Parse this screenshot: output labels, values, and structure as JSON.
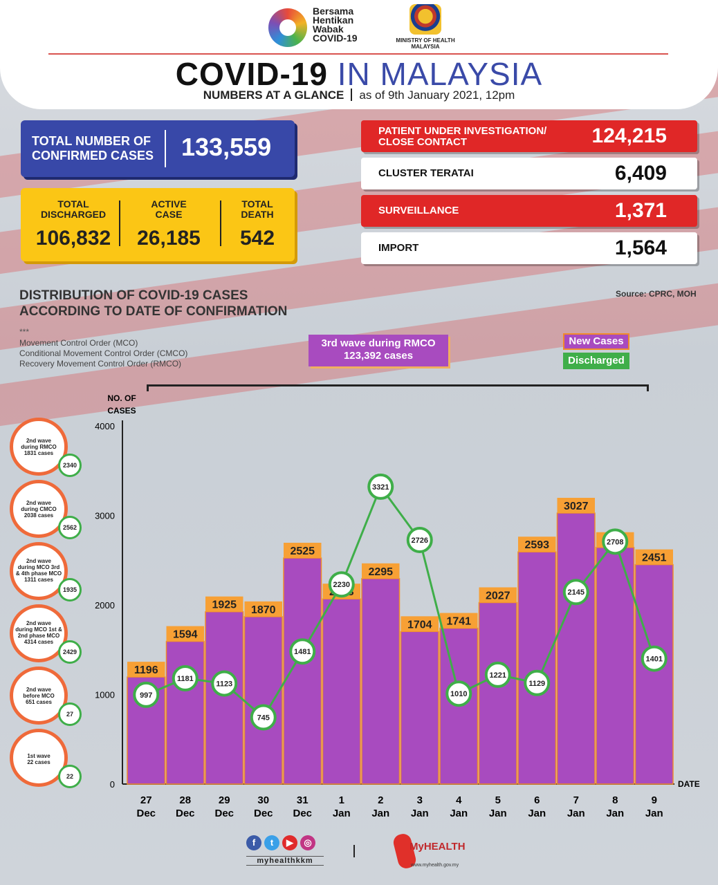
{
  "header": {
    "logo1_text": [
      "Bersama",
      "Hentikan",
      "Wabak",
      "COVID-19"
    ],
    "ministry": [
      "MINISTRY OF HEALTH",
      "MALAYSIA"
    ],
    "title_a": "COVID-19",
    "title_b": "IN MALAYSIA",
    "subtitle_a": "NUMBERS AT A GLANCE",
    "subtitle_b": "as of 9th January 2021, 12pm"
  },
  "summary": {
    "total_label_1": "TOTAL NUMBER OF",
    "total_label_2": "CONFIRMED CASES",
    "total_value": "133,559",
    "discharged_label_1": "TOTAL",
    "discharged_label_2": "DISCHARGED",
    "discharged_value": "106,832",
    "active_label_1": "ACTIVE",
    "active_label_2": "CASE",
    "active_value": "26,185",
    "death_label_1": "TOTAL",
    "death_label_2": "DEATH",
    "death_value": "542"
  },
  "categories": [
    {
      "label_1": "PATIENT UNDER INVESTIGATION/",
      "label_2": "CLOSE CONTACT",
      "value": "124,215",
      "style": "red"
    },
    {
      "label_1": "CLUSTER TERATAI",
      "label_2": "",
      "value": "6,409",
      "style": "white"
    },
    {
      "label_1": "SURVEILLANCE",
      "label_2": "",
      "value": "1,371",
      "style": "red"
    },
    {
      "label_1": "IMPORT",
      "label_2": "",
      "value": "1,564",
      "style": "white"
    }
  ],
  "distribution": {
    "title_1": "DISTRIBUTION OF COVID-19 CASES",
    "title_2": "ACCORDING TO DATE OF CONFIRMATION",
    "source": "Source: CPRC, MOH",
    "stars": "***",
    "mco_1": "Movement Control Order (MCO)",
    "mco_2": "Conditional Movement Control Order (CMCO)",
    "mco_3": "Recovery Movement Control Order (RMCO)",
    "wave3_1": "3rd wave during RMCO",
    "wave3_2": "123,392 cases",
    "legend_new": "New Cases",
    "legend_discharged": "Discharged"
  },
  "waves": [
    {
      "lines": [
        "2nd wave",
        "during RMCO",
        "1831 cases"
      ],
      "discharged": "2340"
    },
    {
      "lines": [
        "2nd wave",
        "during CMCO",
        "2038 cases"
      ],
      "discharged": "2562"
    },
    {
      "lines": [
        "2nd wave",
        "during MCO 3rd",
        "& 4th phase MCO",
        "1311 cases"
      ],
      "discharged": "1935"
    },
    {
      "lines": [
        "2nd wave",
        "during MCO 1st &",
        "2nd phase MCO",
        "4314 cases"
      ],
      "discharged": "2429"
    },
    {
      "lines": [
        "2nd wave",
        "before MCO",
        "651 cases"
      ],
      "discharged": "27"
    },
    {
      "lines": [
        "1st wave",
        "22 cases"
      ],
      "discharged": "22"
    }
  ],
  "chart_data": {
    "type": "bar",
    "ylabel": "NO. OF CASES",
    "xlabel": "DATE",
    "ylim": [
      0,
      4000
    ],
    "yticks": [
      0,
      1000,
      2000,
      3000,
      4000
    ],
    "categories": [
      [
        "27",
        "Dec"
      ],
      [
        "28",
        "Dec"
      ],
      [
        "29",
        "Dec"
      ],
      [
        "30",
        "Dec"
      ],
      [
        "31",
        "Dec"
      ],
      [
        "1",
        "Jan"
      ],
      [
        "2",
        "Jan"
      ],
      [
        "3",
        "Jan"
      ],
      [
        "4",
        "Jan"
      ],
      [
        "5",
        "Jan"
      ],
      [
        "6",
        "Jan"
      ],
      [
        "7",
        "Jan"
      ],
      [
        "8",
        "Jan"
      ],
      [
        "9",
        "Jan"
      ]
    ],
    "series": [
      {
        "name": "New Cases",
        "kind": "bar",
        "color": "#a84bbf",
        "values": [
          1196,
          1594,
          1925,
          1870,
          2525,
          2068,
          2295,
          1704,
          1741,
          2027,
          2593,
          3027,
          2643,
          2451
        ]
      },
      {
        "name": "Discharged",
        "kind": "line",
        "color": "#3fae49",
        "values": [
          997,
          1181,
          1123,
          745,
          1481,
          2230,
          3321,
          2726,
          1010,
          1221,
          1129,
          2145,
          2708,
          1401
        ]
      }
    ],
    "label_color": "#f7a035"
  },
  "footer": {
    "handle": "myhealthkkm",
    "myhealth": "MyHEALTH",
    "url": "www.myhealth.gov.my"
  }
}
